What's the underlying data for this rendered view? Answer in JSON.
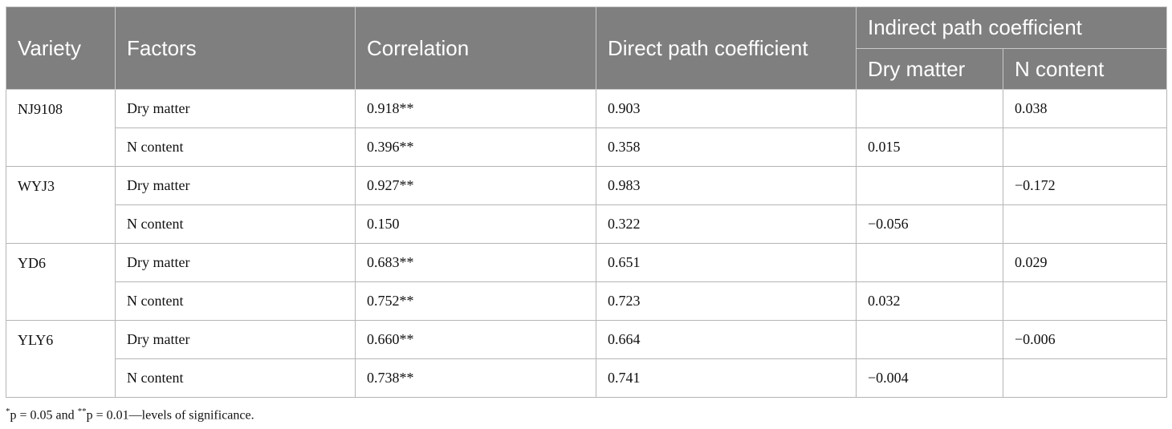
{
  "headers": {
    "variety": "Variety",
    "factors": "Factors",
    "correlation": "Correlation",
    "direct": "Direct path coefficient",
    "indirect": "Indirect path coefficient",
    "indirect_dry": "Dry matter",
    "indirect_n": "N content"
  },
  "groups": [
    {
      "variety": "NJ9108",
      "rows": [
        {
          "factor": "Dry matter",
          "correlation": "0.918**",
          "direct": "0.903",
          "ind_dry": "",
          "ind_n": "0.038"
        },
        {
          "factor": "N content",
          "correlation": "0.396**",
          "direct": "0.358",
          "ind_dry": "0.015",
          "ind_n": ""
        }
      ]
    },
    {
      "variety": "WYJ3",
      "rows": [
        {
          "factor": "Dry matter",
          "correlation": "0.927**",
          "direct": "0.983",
          "ind_dry": "",
          "ind_n": "−0.172"
        },
        {
          "factor": "N content",
          "correlation": "0.150",
          "direct": "0.322",
          "ind_dry": "−0.056",
          "ind_n": ""
        }
      ]
    },
    {
      "variety": "YD6",
      "rows": [
        {
          "factor": "Dry matter",
          "correlation": "0.683**",
          "direct": "0.651",
          "ind_dry": "",
          "ind_n": "0.029"
        },
        {
          "factor": "N content",
          "correlation": "0.752**",
          "direct": "0.723",
          "ind_dry": "0.032",
          "ind_n": ""
        }
      ]
    },
    {
      "variety": "YLY6",
      "rows": [
        {
          "factor": "Dry matter",
          "correlation": "0.660**",
          "direct": "0.664",
          "ind_dry": "",
          "ind_n": "−0.006"
        },
        {
          "factor": "N content",
          "correlation": "0.738**",
          "direct": "0.741",
          "ind_dry": "−0.004",
          "ind_n": ""
        }
      ]
    }
  ],
  "footnote": {
    "star1": "*",
    "text1": "p = 0.05 and ",
    "star2": "**",
    "text2": "p = 0.01—levels of significance."
  }
}
